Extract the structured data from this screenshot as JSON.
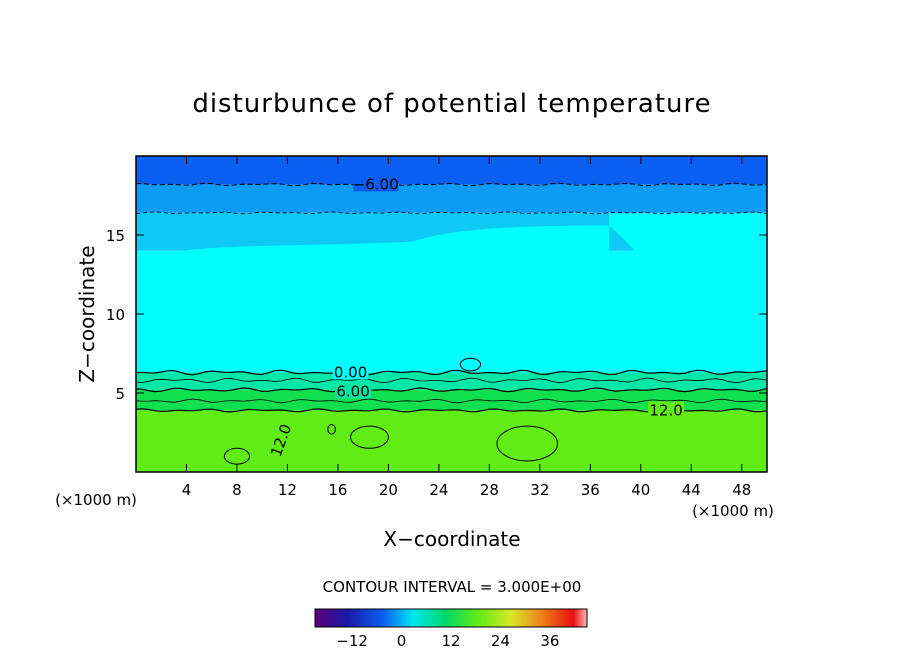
{
  "chart_data": {
    "type": "contour",
    "title": "disturbunce of potential temperature",
    "xlabel": "X−coordinate",
    "ylabel": "Z−coordinate",
    "x_unit": "(×1000 m)",
    "y_unit": "(×1000 m)",
    "xlim": [
      0,
      50
    ],
    "ylim": [
      0,
      20
    ],
    "x_ticks": [
      4,
      8,
      12,
      16,
      20,
      24,
      28,
      32,
      36,
      40,
      44,
      48
    ],
    "y_ticks": [
      5,
      10,
      15
    ],
    "contour_interval_label": "CONTOUR INTERVAL = 3.000E+00",
    "contour_labels": [
      {
        "text": "−6.00",
        "x": 19,
        "z": 18.2
      },
      {
        "text": "0.00",
        "x": 17,
        "z": 6.3
      },
      {
        "text": "6.00",
        "x": 17.2,
        "z": 5.1
      },
      {
        "text": "12.0",
        "x": 42,
        "z": 3.9
      },
      {
        "text": "12.0",
        "x": 11.5,
        "z": 2.0
      }
    ],
    "colorbar": {
      "ticks": [
        -12,
        0,
        12,
        24,
        36
      ],
      "range": [
        -21,
        45
      ]
    },
    "fields": [
      {
        "level": "-6",
        "z_bottom": 18.2,
        "z_top": 20,
        "color": "#0a5ff0"
      },
      {
        "level": "-3",
        "z_bottom": 16.4,
        "z_top": 18.2,
        "color": "#0c9cf5"
      },
      {
        "level": "0",
        "z_bottom": 14.0,
        "z_top": 16.4,
        "color": "#0ec9f4"
      },
      {
        "level": "3",
        "z_bottom": 6.3,
        "z_top": 14.0,
        "color": "#00ffff"
      },
      {
        "level": "6",
        "z_bottom": 5.2,
        "z_top": 6.3,
        "color": "#00e8a8"
      },
      {
        "level": "9",
        "z_bottom": 3.9,
        "z_top": 5.2,
        "color": "#10e050"
      },
      {
        "level": "12",
        "z_bottom": 0,
        "z_top": 3.9,
        "color": "#60ec14"
      }
    ]
  }
}
